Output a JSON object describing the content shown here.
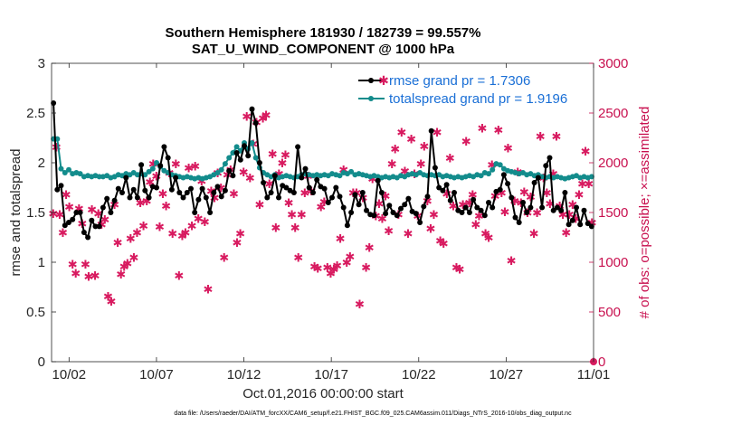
{
  "chart_data": {
    "type": "line",
    "title_line1": "Southern Hemisphere 181930 / 182739 = 99.557%",
    "title_line2": "SAT_U_WIND_COMPONENT @ 1000 hPa",
    "xlabel": "Oct.01,2016 00:00:00 start",
    "ylabel_left": "rmse and totalspread",
    "ylabel_right": "# of obs: o=possible; ×=assimilated",
    "footnote": "data file: /Users/raeder/DAI/ATM_forcXX/CAM6_setup/f.e21.FHIST_BGC.f09_025.CAM6assim.011/Diags_NTrS_2016-10/obs_diag_output.nc",
    "x_ticks": [
      "10/02",
      "10/07",
      "10/12",
      "10/17",
      "10/22",
      "10/27",
      "11/01"
    ],
    "x_tick_days": [
      1,
      6,
      11,
      16,
      21,
      26,
      31
    ],
    "xlim": [
      0,
      31
    ],
    "ylim_left": [
      0,
      3
    ],
    "yticks_left": [
      "0",
      "0.5",
      "1",
      "1.5",
      "2",
      "2.5",
      "3"
    ],
    "ylim_right": [
      0,
      3000
    ],
    "yticks_right": [
      "0",
      "500",
      "1000",
      "1500",
      "2000",
      "2500",
      "3000"
    ],
    "legend": {
      "position": "top-right",
      "entries": [
        "rmse grand pr = 1.7306",
        "totalspread grand pr = 1.9196"
      ]
    },
    "colors": {
      "rmse": "#000000",
      "spread": "#138c8c",
      "obs": "#d81b60",
      "right_axis": "#c8104f",
      "legend_text": "#1a6fd6"
    },
    "series": [
      {
        "name": "rmse",
        "values": [
          2.6,
          1.73,
          1.77,
          1.37,
          1.4,
          1.43,
          1.5,
          1.5,
          1.3,
          1.25,
          1.42,
          1.36,
          1.36,
          1.55,
          1.64,
          1.5,
          1.62,
          1.74,
          1.7,
          1.85,
          1.65,
          1.73,
          1.65,
          1.98,
          1.72,
          1.65,
          1.76,
          1.75,
          1.97,
          2.16,
          2.05,
          1.73,
          1.85,
          1.7,
          1.65,
          1.7,
          1.74,
          1.5,
          1.63,
          1.74,
          1.65,
          1.5,
          1.7,
          1.76,
          1.66,
          1.72,
          1.92,
          1.87,
          2.1,
          2.03,
          2.17,
          2.07,
          2.54,
          2.4,
          2.0,
          1.8,
          1.65,
          1.7,
          1.87,
          1.65,
          1.77,
          1.75,
          1.72,
          1.7,
          2.16,
          1.85,
          1.94,
          1.75,
          1.7,
          1.83,
          1.76,
          1.74,
          1.6,
          1.65,
          1.75,
          1.66,
          1.55,
          1.37,
          1.5,
          1.68,
          1.58,
          1.7,
          1.52,
          1.48,
          1.47,
          1.82,
          1.7,
          1.49,
          1.57,
          1.5,
          1.47,
          1.54,
          1.58,
          1.64,
          1.51,
          1.49,
          1.4,
          1.56,
          1.66,
          2.32,
          1.95,
          1.75,
          1.72,
          1.78,
          1.62,
          1.7,
          1.52,
          1.5,
          1.55,
          1.5,
          1.63,
          1.55,
          1.52,
          1.47,
          1.6,
          1.55,
          1.71,
          1.73,
          1.88,
          1.79,
          1.65,
          1.45,
          1.4,
          1.6,
          1.5,
          1.55,
          1.8,
          1.85,
          1.55,
          1.97,
          2.05,
          1.52,
          1.55,
          1.52,
          1.7,
          1.38,
          1.42,
          1.55,
          1.38,
          1.52,
          1.39,
          1.36
        ]
      },
      {
        "name": "totalspread",
        "values": [
          2.24,
          2.24,
          1.94,
          1.9,
          1.93,
          1.89,
          1.9,
          1.89,
          1.86,
          1.87,
          1.86,
          1.87,
          1.86,
          1.86,
          1.87,
          1.85,
          1.86,
          1.88,
          1.87,
          1.89,
          1.88,
          1.9,
          1.88,
          1.89,
          1.88,
          1.91,
          1.94,
          2.0,
          1.96,
          1.92,
          1.9,
          1.88,
          1.87,
          1.86,
          1.85,
          1.86,
          1.85,
          1.84,
          1.85,
          1.84,
          1.85,
          1.86,
          1.88,
          1.9,
          1.93,
          1.99,
          2.05,
          2.1,
          2.16,
          2.12,
          2.2,
          2.14,
          2.2,
          2.05,
          1.95,
          1.9,
          1.88,
          1.86,
          1.88,
          1.85,
          1.86,
          1.87,
          1.86,
          1.85,
          1.86,
          1.88,
          1.89,
          1.88,
          1.87,
          1.88,
          1.87,
          1.88,
          1.87,
          1.89,
          1.88,
          1.87,
          1.9,
          1.89,
          1.91,
          1.88,
          1.89,
          1.88,
          1.87,
          1.86,
          1.87,
          1.86,
          1.85,
          1.86,
          1.85,
          1.86,
          1.85,
          1.87,
          1.86,
          1.88,
          1.89,
          1.88,
          1.9,
          1.88,
          1.87,
          1.88,
          1.87,
          1.88,
          1.86,
          1.87,
          1.86,
          1.85,
          1.86,
          1.85,
          1.86,
          1.87,
          1.86,
          1.88,
          1.87,
          1.9,
          1.89,
          1.93,
          1.99,
          1.98,
          1.94,
          1.92,
          1.91,
          1.9,
          1.89,
          1.9,
          1.88,
          1.89,
          1.87,
          1.88,
          1.86,
          1.85,
          1.86,
          1.85,
          1.86,
          1.85,
          1.84,
          1.85,
          1.86,
          1.87,
          1.85,
          1.86,
          1.85,
          1.86
        ]
      },
      {
        "name": "obs_possible",
        "values": [
          1490,
          2160,
          1480,
          1300,
          1680,
          1560,
          980,
          890,
          1540,
          1390,
          980,
          860,
          1530,
          870,
          1490,
          1380,
          1430,
          660,
          610,
          1580,
          1200,
          880,
          960,
          990,
          1240,
          1050,
          1300,
          1600,
          1370,
          1620,
          1810,
          1990,
          1870,
          1360,
          1690,
          1570,
          1900,
          1290,
          1990,
          870,
          1270,
          1300,
          1950,
          1370,
          1970,
          1440,
          1820,
          1410,
          730,
          1720,
          1650,
          1900,
          1750,
          1050,
          1880,
          1930,
          1690,
          1200,
          1290,
          1910,
          2470,
          1850,
          2190,
          2410,
          1580,
          2450,
          2480,
          1790,
          2090,
          1350,
          1890,
          2000,
          2080,
          1600,
          1480,
          1350,
          1050,
          1480,
          1700,
          1870,
          1720,
          960,
          940,
          1560,
          1610,
          950,
          890,
          930,
          970,
          1240,
          1930,
          1000,
          1060,
          1700,
          1700,
          580,
          1650,
          950,
          1150,
          1840,
          1470,
          1590,
          1440,
          1670,
          1320,
          1990,
          2140,
          1480,
          2310,
          1920,
          1290,
          2240,
          1890,
          1470,
          1990,
          2170,
          1620,
          1340,
          1480,
          2310,
          1220,
          1190,
          1690,
          2050,
          1570,
          950,
          930,
          1580,
          2220,
          1600,
          1680,
          1380,
          1470,
          2350,
          1290,
          1250,
          1980,
          1670,
          2330,
          1700,
          1510,
          2150,
          1020,
          1620,
          1910,
          1600,
          1710,
          1500,
          1660,
          1290,
          1500,
          2270,
          1850,
          1700,
          1590,
          1890,
          2270,
          1570,
          1480,
          1300,
          1480,
          1580,
          1440,
          1680,
          1790,
          2120,
          1790,
          1400
        ]
      },
      {
        "name": "obs_end_marker",
        "x": 31,
        "value": 0
      }
    ]
  }
}
